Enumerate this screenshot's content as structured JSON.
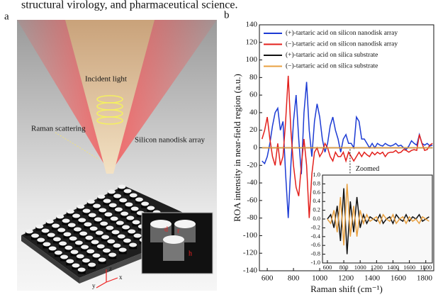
{
  "header": {
    "caption_fragment": "structural virology, and pharmaceutical science."
  },
  "panel_a": {
    "label": "a",
    "incident_light": "Incident light",
    "raman_scattering": "Raman scattering",
    "nanodisk_array": "Silicon nanodisk array",
    "inset_labels": [
      "d",
      "r",
      "h"
    ],
    "axes": [
      "z",
      "y",
      "x"
    ]
  },
  "chart_data": [
    {
      "type": "line",
      "panel_label": "b",
      "y_label": "ROA intensity in near-field region (a.u.)",
      "x_label": "Raman shift (cm⁻¹)",
      "annotation": "Zoomed",
      "xlim": [
        540,
        1870
      ],
      "ylim": [
        -140,
        140
      ],
      "xticks": [
        600,
        800,
        1000,
        1200,
        1400,
        1600,
        1800
      ],
      "yticks": [
        -140,
        -120,
        -100,
        -80,
        -60,
        -40,
        -20,
        0,
        20,
        40,
        60,
        80,
        100,
        120,
        140
      ],
      "legend": "upper left",
      "x": [
        560,
        580,
        600,
        620,
        640,
        660,
        680,
        700,
        720,
        740,
        760,
        780,
        800,
        820,
        840,
        860,
        880,
        900,
        920,
        940,
        960,
        980,
        1000,
        1020,
        1040,
        1060,
        1080,
        1100,
        1120,
        1140,
        1160,
        1180,
        1200,
        1220,
        1240,
        1260,
        1280,
        1300,
        1320,
        1340,
        1360,
        1380,
        1400,
        1420,
        1440,
        1460,
        1480,
        1500,
        1520,
        1540,
        1560,
        1580,
        1600,
        1620,
        1640,
        1660,
        1680,
        1700,
        1720,
        1740,
        1760,
        1780,
        1800,
        1820,
        1840,
        1860
      ],
      "series": [
        {
          "name": "(+)-tartaric acid on silicon nanodisk array",
          "color": "#1c3bd4",
          "values": [
            -15,
            -18,
            -10,
            5,
            25,
            40,
            45,
            20,
            30,
            -30,
            -80,
            -20,
            30,
            60,
            10,
            -30,
            40,
            75,
            20,
            -10,
            30,
            50,
            35,
            10,
            -5,
            5,
            25,
            35,
            20,
            10,
            -5,
            10,
            15,
            5,
            5,
            0,
            35,
            30,
            10,
            10,
            5,
            0,
            5,
            0,
            5,
            3,
            2,
            5,
            3,
            2,
            3,
            5,
            2,
            3,
            0,
            -2,
            2,
            8,
            5,
            3,
            15,
            5,
            3,
            5,
            2,
            3
          ]
        },
        {
          "name": "(−)-tartaric acid on silicon nanodisk array",
          "color": "#e3201c",
          "values": [
            10,
            20,
            35,
            10,
            -10,
            -20,
            5,
            -20,
            -10,
            30,
            82,
            20,
            -20,
            -45,
            -55,
            -20,
            10,
            -20,
            -80,
            -30,
            -5,
            0,
            -10,
            -5,
            5,
            0,
            -10,
            -15,
            -5,
            -10,
            -10,
            -5,
            -15,
            -5,
            -10,
            -15,
            -10,
            -5,
            -10,
            -5,
            -8,
            -10,
            -5,
            -8,
            -5,
            -7,
            -5,
            -10,
            -6,
            -5,
            -5,
            -3,
            -6,
            -5,
            -2,
            -3,
            -5,
            -3,
            -2,
            -3,
            15,
            5,
            -3,
            -2,
            3,
            5
          ]
        },
        {
          "name": "(+)-tartaric acid on silica substrate",
          "color": "#111111",
          "values": [
            0,
            0,
            0,
            0,
            0,
            0,
            0,
            0,
            0,
            0,
            0,
            0,
            0,
            0,
            0,
            0,
            0,
            0,
            0,
            0,
            0,
            0,
            0,
            0,
            0,
            0,
            0,
            0,
            0,
            0,
            0,
            0,
            0,
            0,
            0,
            0,
            0,
            0,
            0,
            0,
            0,
            0,
            0,
            0,
            0,
            0,
            0,
            0,
            0,
            0,
            0,
            0,
            0,
            0,
            0,
            0,
            0,
            0,
            0,
            0,
            0,
            0,
            0,
            0,
            0,
            0
          ]
        },
        {
          "name": "(−)-tartaric acid on silica substrate",
          "color": "#e8a040",
          "values": [
            0,
            0,
            0,
            0,
            0,
            0,
            0,
            0,
            0,
            0,
            0,
            0,
            0,
            0,
            0,
            0,
            0,
            0,
            0,
            0,
            0,
            0,
            0,
            0,
            0,
            0,
            0,
            0,
            0,
            0,
            0,
            0,
            0,
            0,
            0,
            0,
            0,
            0,
            0,
            0,
            0,
            0,
            0,
            0,
            0,
            0,
            0,
            0,
            0,
            0,
            0,
            0,
            0,
            0,
            0,
            0,
            0,
            0,
            0,
            0,
            0,
            0,
            0,
            0,
            0,
            0
          ]
        }
      ]
    },
    {
      "type": "line",
      "xlim": [
        540,
        1880
      ],
      "ylim": [
        -1,
        1
      ],
      "xticks": [
        600,
        800,
        1000,
        1200,
        1400,
        1600,
        1800
      ],
      "yticks": [
        {
          "value": 1,
          "label": "1.0"
        },
        0.8,
        0.6,
        0.4,
        0.2,
        {
          "value": 0,
          "label": "0.0"
        },
        -0.2,
        -0.4,
        -0.6,
        -0.8,
        {
          "value": -1,
          "label": "-1.0"
        }
      ],
      "x": [
        600,
        640,
        680,
        720,
        760,
        800,
        840,
        880,
        920,
        960,
        1000,
        1040,
        1080,
        1120,
        1160,
        1200,
        1240,
        1280,
        1320,
        1360,
        1400,
        1440,
        1480,
        1520,
        1560,
        1600,
        1640,
        1680,
        1720,
        1760,
        1800,
        1840
      ],
      "series": [
        {
          "color": "#111111",
          "values": [
            0,
            0.1,
            -0.2,
            0.3,
            -0.5,
            0.7,
            -0.8,
            0.4,
            -0.3,
            0.5,
            -0.2,
            0.1,
            -0.1,
            0.05,
            0,
            -0.05,
            0.1,
            -0.1,
            0,
            0.05,
            -0.1,
            0.1,
            0,
            -0.05,
            0.1,
            -0.05,
            0.05,
            0,
            0.1,
            -0.05,
            0,
            0.05
          ]
        },
        {
          "color": "#e8a040",
          "values": [
            0,
            -0.1,
            0.2,
            -0.3,
            0.5,
            -0.6,
            0.8,
            -0.4,
            0.3,
            -0.4,
            0.2,
            -0.1,
            0.1,
            -0.05,
            0,
            0.05,
            -0.1,
            0.1,
            0,
            -0.05,
            0.1,
            -0.1,
            0,
            0.05,
            -0.1,
            0.05,
            -0.05,
            0,
            -0.1,
            0.05,
            0,
            -0.05
          ]
        }
      ]
    }
  ]
}
